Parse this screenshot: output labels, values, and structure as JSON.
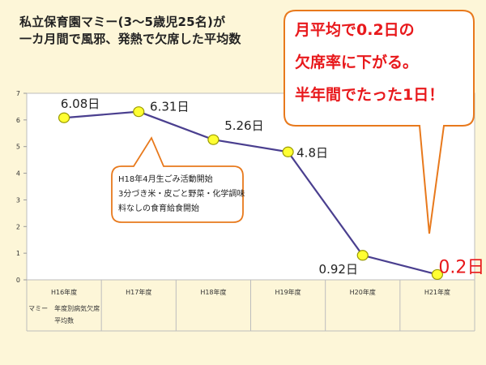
{
  "title_lines": [
    "私立保育園マミー(3〜5歳児25名)が",
    "一カ月間で風邪、発熱で欠席した平均数"
  ],
  "callout_lines": [
    "月平均で0.2日の",
    "欠席率に下がる。",
    "半年間でたった1日！"
  ],
  "note_lines": [
    "H18年4月生ごみ活動開始",
    "3分づき米・皮ごと野菜・化学調味",
    "料なしの食育給食開始"
  ],
  "colors": {
    "background": "#fdf6d8",
    "plot_area": "#ffffff",
    "line": "#4a3f8f",
    "marker_fill": "#ffff33",
    "marker_stroke": "#9a9a00",
    "callout_border": "#e8791c",
    "highlight_text": "#e8191c"
  },
  "chart_data": {
    "type": "line",
    "categories": [
      "H16年度",
      "H17年度",
      "H18年度",
      "H19年度",
      "H20年度",
      "H21年度"
    ],
    "series": [
      {
        "name": "マミー　年度別病気欠席平均数",
        "values": [
          6.08,
          6.31,
          5.26,
          4.8,
          0.92,
          0.2
        ],
        "data_labels": [
          "6.08日",
          "6.31日",
          "5.26日",
          "4.8日",
          "0.92日",
          "0.2日"
        ]
      }
    ],
    "legend_label": "マミー　年度別病気欠席平均数",
    "legend_position": "bottom-left",
    "yticks": [
      0,
      1,
      2,
      3,
      4,
      5,
      6,
      7
    ],
    "ylim": [
      0,
      7
    ],
    "grid": false,
    "xlabel": "",
    "ylabel": ""
  }
}
